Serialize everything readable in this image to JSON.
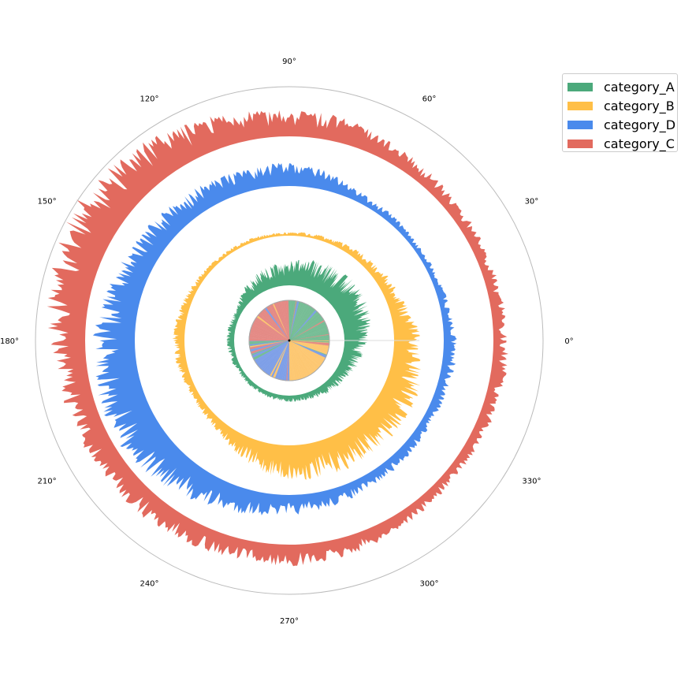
{
  "chart_data": {
    "type": "area",
    "subtype": "polar stacked rings with inner pie",
    "angle_ticks": [
      "0°",
      "30°",
      "60°",
      "90°",
      "120°",
      "150°",
      "180°",
      "210°",
      "240°",
      "270°",
      "300°",
      "330°"
    ],
    "angle_tick_values": [
      0,
      30,
      60,
      90,
      120,
      150,
      180,
      210,
      240,
      270,
      300,
      330
    ],
    "grid": false,
    "legend": "top-right",
    "envelope_angles_deg": [
      0,
      10,
      20,
      30,
      40,
      50,
      60,
      70,
      80,
      90,
      100,
      110,
      120,
      130,
      140,
      150,
      160,
      170,
      180,
      190,
      200,
      210,
      220,
      230,
      240,
      250,
      260,
      270,
      280,
      290,
      300,
      310,
      320,
      330,
      340,
      350
    ],
    "series": [
      {
        "name": "category_A",
        "color": "#4ba97b",
        "pie_color": "#76bd95",
        "envelope": [
          0.75,
          0.85,
          0.95,
          1,
          1,
          1,
          0.95,
          0.9,
          0.8,
          0.75,
          0.7,
          0.65,
          0.55,
          0.45,
          0.3,
          0.2,
          0.2,
          0.25,
          0.25,
          0.2,
          0.2,
          0.15,
          0.15,
          0.15,
          0.15,
          0.18,
          0.2,
          0.2,
          0.2,
          0.22,
          0.28,
          0.32,
          0.38,
          0.42,
          0.55,
          0.65
        ]
      },
      {
        "name": "category_B",
        "color": "#ffbf47",
        "pie_color": "#fdc771",
        "envelope": [
          0.8,
          0.6,
          0.45,
          0.4,
          0.3,
          0.25,
          0.2,
          0.15,
          0.12,
          0.1,
          0.1,
          0.12,
          0.12,
          0.12,
          0.15,
          0.2,
          0.25,
          0.3,
          0.35,
          0.3,
          0.25,
          0.22,
          0.25,
          0.3,
          0.45,
          0.7,
          0.85,
          1,
          1,
          1,
          1,
          1,
          1,
          1,
          0.95,
          0.9
        ]
      },
      {
        "name": "category_D",
        "color": "#4a8aec",
        "pie_color": "#7e9fe8",
        "envelope": [
          0.3,
          0.22,
          0.18,
          0.15,
          0.15,
          0.18,
          0.2,
          0.3,
          0.45,
          0.55,
          0.5,
          0.5,
          0.55,
          0.55,
          0.6,
          0.65,
          0.75,
          0.85,
          0.95,
          1,
          1,
          1,
          0.95,
          0.85,
          0.7,
          0.6,
          0.5,
          0.45,
          0.4,
          0.35,
          0.3,
          0.28,
          0.25,
          0.22,
          0.25,
          0.3
        ]
      },
      {
        "name": "category_C",
        "color": "#e26a5e",
        "pie_color": "#e48a85",
        "envelope": [
          0.3,
          0.28,
          0.25,
          0.25,
          0.28,
          0.3,
          0.35,
          0.45,
          0.5,
          0.5,
          0.55,
          0.65,
          0.75,
          0.85,
          0.95,
          1,
          0.9,
          0.8,
          0.7,
          0.6,
          0.55,
          0.55,
          0.5,
          0.5,
          0.45,
          0.42,
          0.4,
          0.42,
          0.4,
          0.35,
          0.28,
          0.25,
          0.22,
          0.25,
          0.28,
          0.3
        ]
      }
    ],
    "pie_sector_dominance": [
      {
        "name": "category_A",
        "from_deg": 0,
        "to_deg": 90
      },
      {
        "name": "category_C",
        "from_deg": 90,
        "to_deg": 180
      },
      {
        "name": "category_D",
        "from_deg": 180,
        "to_deg": 270
      },
      {
        "name": "category_B",
        "from_deg": 270,
        "to_deg": 360
      }
    ]
  }
}
